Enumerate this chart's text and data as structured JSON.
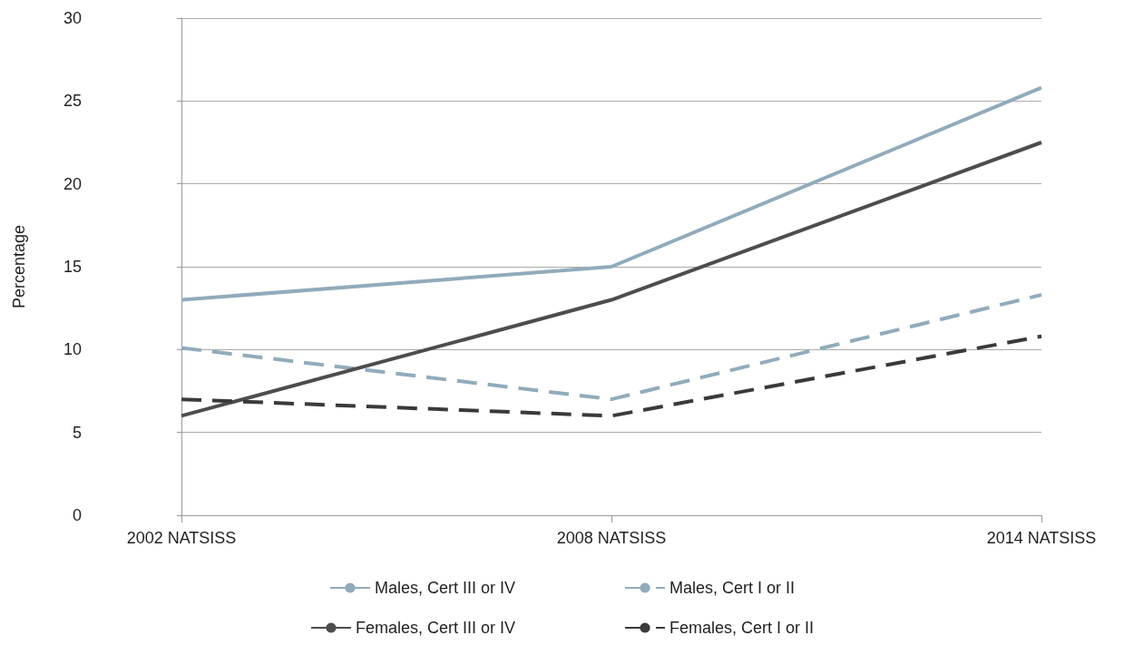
{
  "chart_data": {
    "type": "line",
    "ylabel": "Percentage",
    "categories": [
      "2002 NATSISS",
      "2008 NATSISS",
      "2014 NATSISS"
    ],
    "series": [
      {
        "name": "Males, Cert III or IV",
        "color": "#91abbb",
        "values": [
          13,
          15,
          25.8
        ],
        "line_style": "solid"
      },
      {
        "name": "Males, Cert I or II",
        "color": "#91abbb",
        "values": [
          10.1,
          7,
          13.3
        ],
        "line_style": "dashed"
      },
      {
        "name": "Females, Cert III or IV",
        "color": "#4d4d4d",
        "values": [
          6,
          13,
          22.5
        ],
        "line_style": "solid"
      },
      {
        "name": "Females, Cert I or II",
        "color": "#3a3a3a",
        "values": [
          7,
          6,
          10.8
        ],
        "line_style": "dashed"
      }
    ],
    "ylim": [
      0,
      30
    ],
    "yticks": [
      0,
      5,
      10,
      15,
      20,
      25,
      30
    ],
    "grid": "y",
    "legend": "bottom",
    "marker": "none"
  }
}
